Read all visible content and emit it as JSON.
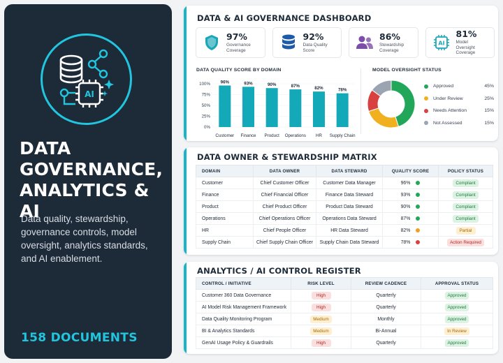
{
  "hero": {
    "title_line1": "DATA",
    "title_line2": "GOVERNANCE,",
    "title_line3": "ANALYTICS & AI",
    "description": "Data quality, stewardship, governance controls, model oversight, analytics standards, and AI enablement.",
    "count": "158 DOCUMENTS",
    "emblem_chip_label": "AI"
  },
  "dashboard": {
    "title": "DATA & AI GOVERNANCE DASHBOARD",
    "kpis": [
      {
        "value": "97%",
        "label": "Governance Coverage",
        "icon": "shield-icon",
        "color": "#1aa6b7"
      },
      {
        "value": "92%",
        "label": "Data Quality Score",
        "icon": "database-icon",
        "color": "#1e5aa8"
      },
      {
        "value": "86%",
        "label": "Stewardship Coverage",
        "icon": "people-icon",
        "color": "#7b4fa8"
      },
      {
        "value": "81%",
        "label": "Model Oversight Coverage",
        "icon": "ai-chip-icon",
        "color": "#1aa6b7",
        "chip_text": "AI"
      }
    ],
    "bar_title": "DATA QUALITY SCORE BY DOMAIN",
    "donut_title": "MODEL OVERSIGHT STATUS"
  },
  "chart_data": [
    {
      "type": "bar",
      "title": "DATA QUALITY SCORE BY DOMAIN",
      "categories": [
        "Customer",
        "Finance",
        "Product",
        "Operations",
        "HR",
        "Supply Chain"
      ],
      "values": [
        96,
        93,
        90,
        87,
        82,
        78
      ],
      "value_labels": [
        "96%",
        "93%",
        "90%",
        "87%",
        "82%",
        "78%"
      ],
      "y_ticks": [
        "0%",
        "25%",
        "50%",
        "75%",
        "100%"
      ],
      "ylim": [
        0,
        100
      ],
      "color": "#14a9b8"
    },
    {
      "type": "pie",
      "title": "MODEL OVERSIGHT STATUS",
      "labels": [
        "Approved",
        "Under Review",
        "Needs Attention",
        "Not Assessed"
      ],
      "values": [
        45,
        25,
        15,
        15
      ],
      "value_labels": [
        "45%",
        "25%",
        "15%",
        "15%"
      ],
      "colors": [
        "#22a65a",
        "#f0b020",
        "#d94040",
        "#9aa5b1"
      ]
    }
  ],
  "matrix": {
    "title": "DATA OWNER & STEWARDSHIP MATRIX",
    "headers": [
      "DOMAIN",
      "DATA OWNER",
      "DATA STEWARD",
      "QUALITY SCORE",
      "POLICY STATUS"
    ],
    "rows": [
      {
        "domain": "Customer",
        "owner": "Chief Customer Officer",
        "steward": "Customer Data Manager",
        "score": "96%",
        "dot": "#22a65a",
        "status": "Compliant",
        "status_bg": "#dcf3e3",
        "status_fg": "#1f7a3f"
      },
      {
        "domain": "Finance",
        "owner": "Chief Financial Officer",
        "steward": "Finance Data Steward",
        "score": "93%",
        "dot": "#22a65a",
        "status": "Compliant",
        "status_bg": "#dcf3e3",
        "status_fg": "#1f7a3f"
      },
      {
        "domain": "Product",
        "owner": "Chief Product Officer",
        "steward": "Product Data Steward",
        "score": "90%",
        "dot": "#22a65a",
        "status": "Compliant",
        "status_bg": "#dcf3e3",
        "status_fg": "#1f7a3f"
      },
      {
        "domain": "Operations",
        "owner": "Chief Operations Officer",
        "steward": "Operations Data Steward",
        "score": "87%",
        "dot": "#22a65a",
        "status": "Compliant",
        "status_bg": "#dcf3e3",
        "status_fg": "#1f7a3f"
      },
      {
        "domain": "HR",
        "owner": "Chief People Officer",
        "steward": "HR Data Steward",
        "score": "82%",
        "dot": "#f0a020",
        "status": "Partial",
        "status_bg": "#fdefcf",
        "status_fg": "#a8680a"
      },
      {
        "domain": "Supply Chain",
        "owner": "Chief Supply Chain Officer",
        "steward": "Supply Chain Data Steward",
        "score": "78%",
        "dot": "#d94040",
        "status": "Action Required",
        "status_bg": "#fbdede",
        "status_fg": "#b3261e"
      }
    ]
  },
  "register": {
    "title": "ANALYTICS / AI CONTROL REGISTER",
    "headers": [
      "CONTROL / INITIATIVE",
      "RISK LEVEL",
      "REVIEW CADENCE",
      "APPROVAL STATUS"
    ],
    "rows": [
      {
        "name": "Customer 360 Data Governance",
        "risk": "High",
        "risk_bg": "#fbdede",
        "risk_fg": "#b3261e",
        "cadence": "Quarterly",
        "status": "Approved",
        "status_bg": "#dcf3e3",
        "status_fg": "#1f7a3f"
      },
      {
        "name": "AI Model Risk Management Framework",
        "risk": "High",
        "risk_bg": "#fbdede",
        "risk_fg": "#b3261e",
        "cadence": "Quarterly",
        "status": "Approved",
        "status_bg": "#dcf3e3",
        "status_fg": "#1f7a3f"
      },
      {
        "name": "Data Quality Monitoring Program",
        "risk": "Medium",
        "risk_bg": "#fdefcf",
        "risk_fg": "#a8680a",
        "cadence": "Monthly",
        "status": "Approved",
        "status_bg": "#dcf3e3",
        "status_fg": "#1f7a3f"
      },
      {
        "name": "BI & Analytics Standards",
        "risk": "Medium",
        "risk_bg": "#fdefcf",
        "risk_fg": "#a8680a",
        "cadence": "Bi-Annual",
        "status": "In Review",
        "status_bg": "#fdefcf",
        "status_fg": "#a8680a"
      },
      {
        "name": "GenAI Usage Policy & Guardrails",
        "risk": "High",
        "risk_bg": "#fbdede",
        "risk_fg": "#b3261e",
        "cadence": "Quarterly",
        "status": "Approved",
        "status_bg": "#dcf3e3",
        "status_fg": "#1f7a3f"
      }
    ]
  }
}
